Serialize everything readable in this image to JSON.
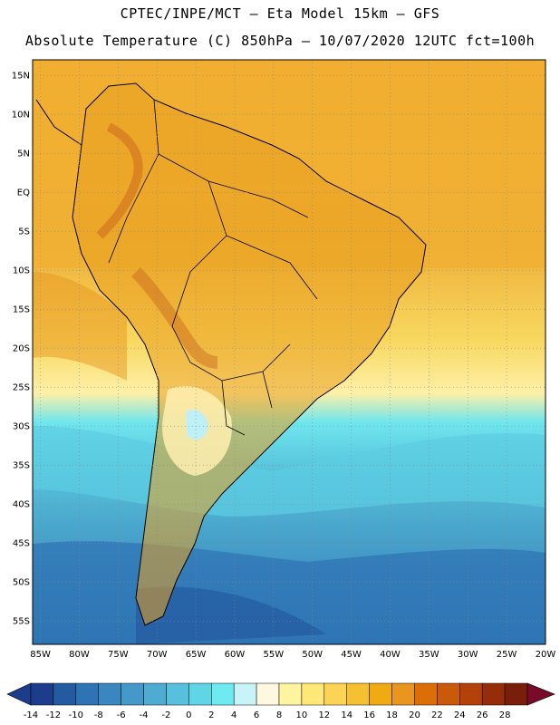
{
  "header": {
    "line1": "CPTEC/INPE/MCT –  Eta Model 15km – GFS",
    "line2": "Absolute Temperature (C) 850hPa – 10/07/2020 12UTC fct=100h"
  },
  "map": {
    "lat_labels": [
      "15N",
      "10N",
      "5N",
      "EQ",
      "5S",
      "10S",
      "15S",
      "20S",
      "25S",
      "30S",
      "35S",
      "40S",
      "45S",
      "50S",
      "55S"
    ],
    "lon_labels": [
      "85W",
      "80W",
      "75W",
      "70W",
      "65W",
      "60W",
      "55W",
      "50W",
      "45W",
      "40W",
      "35W",
      "30W",
      "25W",
      "20W"
    ],
    "lon_range": [
      -86,
      -20
    ],
    "lat_range": [
      17,
      -58
    ]
  },
  "colorbar": {
    "labels": [
      "-14",
      "-12",
      "-10",
      "-8",
      "-6",
      "-4",
      "-2",
      "0",
      "2",
      "4",
      "6",
      "8",
      "10",
      "12",
      "14",
      "16",
      "18",
      "20",
      "22",
      "24",
      "26",
      "28"
    ],
    "colors": [
      "#1e3c8c",
      "#235aa0",
      "#2e73b4",
      "#3a86c0",
      "#4499c8",
      "#4eabd2",
      "#57c0dc",
      "#5fd6e6",
      "#6eeaf0",
      "#c8f4f8",
      "#fff8e0",
      "#fff4a0",
      "#ffe878",
      "#fbd455",
      "#f5c032",
      "#f0aa14",
      "#e8961e",
      "#dc6e0a",
      "#c85a0a",
      "#b4410a",
      "#962d0a",
      "#781e0a"
    ]
  }
}
